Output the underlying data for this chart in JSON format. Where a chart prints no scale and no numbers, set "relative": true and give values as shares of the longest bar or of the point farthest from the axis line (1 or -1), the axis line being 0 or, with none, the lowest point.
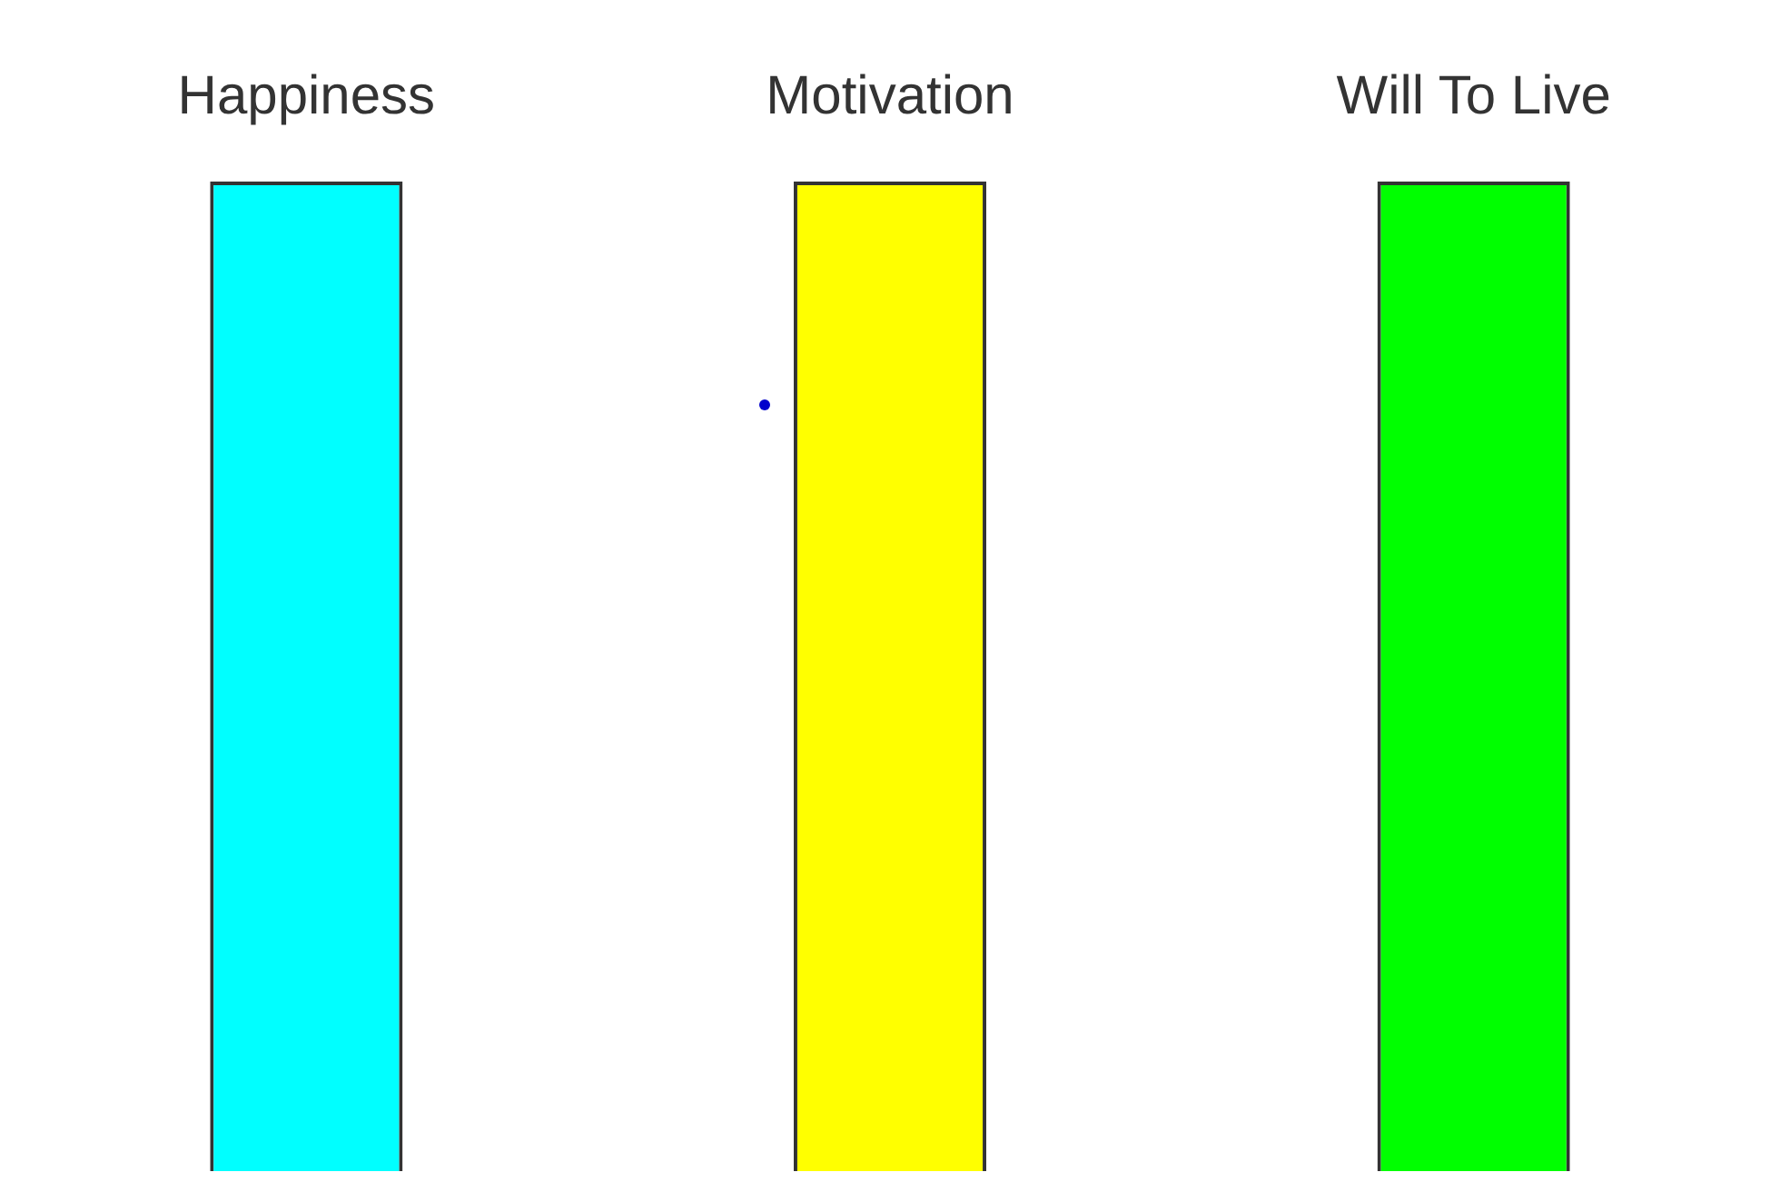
{
  "chart_data": {
    "type": "bar",
    "categories": [
      "Happiness",
      "Motivation",
      "Will To Live"
    ],
    "values": [
      1,
      1,
      1
    ],
    "colors": [
      "#00ffff",
      "#ffff00",
      "#00ff00"
    ],
    "relative": true,
    "grid": false,
    "legend": false
  }
}
